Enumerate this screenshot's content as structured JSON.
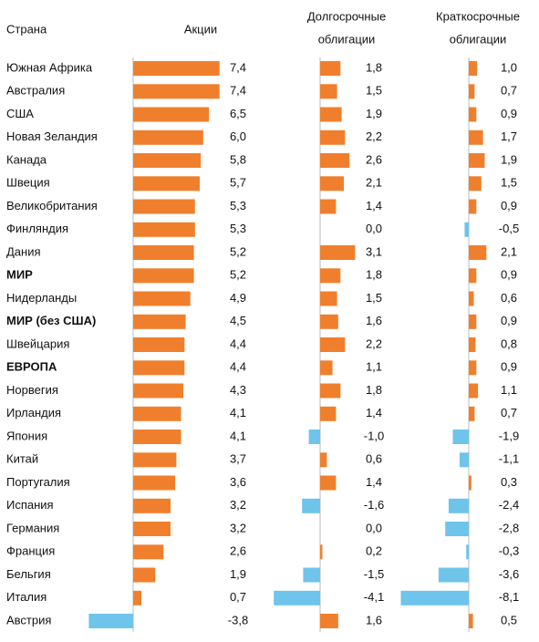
{
  "chart_data": {
    "type": "bar",
    "orientation": "horizontal",
    "header_country": "Страна",
    "columns": [
      {
        "title_lines": [
          "Акции"
        ],
        "key": "stocks"
      },
      {
        "title_lines": [
          "Долгосрочные",
          "облигации"
        ],
        "key": "long_bonds"
      },
      {
        "title_lines": [
          "Краткосрочные",
          "облигации"
        ],
        "key": "short_bonds"
      }
    ],
    "rows": [
      {
        "country": "Южная Африка",
        "bold": false,
        "stocks": 7.4,
        "long_bonds": 1.8,
        "short_bonds": 1.0,
        "stocks_label": "7,4",
        "long_bonds_label": "1,8",
        "short_bonds_label": "1,0"
      },
      {
        "country": "Австралия",
        "bold": false,
        "stocks": 7.4,
        "long_bonds": 1.5,
        "short_bonds": 0.7,
        "stocks_label": "7,4",
        "long_bonds_label": "1,5",
        "short_bonds_label": "0,7"
      },
      {
        "country": "США",
        "bold": false,
        "stocks": 6.5,
        "long_bonds": 1.9,
        "short_bonds": 0.9,
        "stocks_label": "6,5",
        "long_bonds_label": "1,9",
        "short_bonds_label": "0,9"
      },
      {
        "country": "Новая Зеландия",
        "bold": false,
        "stocks": 6.0,
        "long_bonds": 2.2,
        "short_bonds": 1.7,
        "stocks_label": "6,0",
        "long_bonds_label": "2,2",
        "short_bonds_label": "1,7"
      },
      {
        "country": "Канада",
        "bold": false,
        "stocks": 5.8,
        "long_bonds": 2.6,
        "short_bonds": 1.9,
        "stocks_label": "5,8",
        "long_bonds_label": "2,6",
        "short_bonds_label": "1,9"
      },
      {
        "country": "Швеция",
        "bold": false,
        "stocks": 5.7,
        "long_bonds": 2.1,
        "short_bonds": 1.5,
        "stocks_label": "5,7",
        "long_bonds_label": "2,1",
        "short_bonds_label": "1,5"
      },
      {
        "country": "Великобритания",
        "bold": false,
        "stocks": 5.3,
        "long_bonds": 1.4,
        "short_bonds": 0.9,
        "stocks_label": "5,3",
        "long_bonds_label": "1,4",
        "short_bonds_label": "0,9"
      },
      {
        "country": "Финляндия",
        "bold": false,
        "stocks": 5.3,
        "long_bonds": 0.0,
        "short_bonds": -0.5,
        "stocks_label": "5,3",
        "long_bonds_label": "0,0",
        "short_bonds_label": "-0,5"
      },
      {
        "country": "Дания",
        "bold": false,
        "stocks": 5.2,
        "long_bonds": 3.1,
        "short_bonds": 2.1,
        "stocks_label": "5,2",
        "long_bonds_label": "3,1",
        "short_bonds_label": "2,1"
      },
      {
        "country": "МИР",
        "bold": true,
        "stocks": 5.2,
        "long_bonds": 1.8,
        "short_bonds": 0.9,
        "stocks_label": "5,2",
        "long_bonds_label": "1,8",
        "short_bonds_label": "0,9"
      },
      {
        "country": "Нидерланды",
        "bold": false,
        "stocks": 4.9,
        "long_bonds": 1.5,
        "short_bonds": 0.6,
        "stocks_label": "4,9",
        "long_bonds_label": "1,5",
        "short_bonds_label": "0,6"
      },
      {
        "country": "МИР (без США)",
        "bold": true,
        "stocks": 4.5,
        "long_bonds": 1.6,
        "short_bonds": 0.9,
        "stocks_label": "4,5",
        "long_bonds_label": "1,6",
        "short_bonds_label": "0,9"
      },
      {
        "country": "Швейцария",
        "bold": false,
        "stocks": 4.4,
        "long_bonds": 2.2,
        "short_bonds": 0.8,
        "stocks_label": "4,4",
        "long_bonds_label": "2,2",
        "short_bonds_label": "0,8"
      },
      {
        "country": "ЕВРОПА",
        "bold": true,
        "stocks": 4.4,
        "long_bonds": 1.1,
        "short_bonds": 0.9,
        "stocks_label": "4,4",
        "long_bonds_label": "1,1",
        "short_bonds_label": "0,9"
      },
      {
        "country": "Норвегия",
        "bold": false,
        "stocks": 4.3,
        "long_bonds": 1.8,
        "short_bonds": 1.1,
        "stocks_label": "4,3",
        "long_bonds_label": "1,8",
        "short_bonds_label": "1,1"
      },
      {
        "country": "Ирландия",
        "bold": false,
        "stocks": 4.1,
        "long_bonds": 1.4,
        "short_bonds": 0.7,
        "stocks_label": "4,1",
        "long_bonds_label": "1,4",
        "short_bonds_label": "0,7"
      },
      {
        "country": "Япония",
        "bold": false,
        "stocks": 4.1,
        "long_bonds": -1.0,
        "short_bonds": -1.9,
        "stocks_label": "4,1",
        "long_bonds_label": "-1,0",
        "short_bonds_label": "-1,9"
      },
      {
        "country": "Китай",
        "bold": false,
        "stocks": 3.7,
        "long_bonds": 0.6,
        "short_bonds": -1.1,
        "stocks_label": "3,7",
        "long_bonds_label": "0,6",
        "short_bonds_label": "-1,1"
      },
      {
        "country": "Португалия",
        "bold": false,
        "stocks": 3.6,
        "long_bonds": 1.4,
        "short_bonds": 0.3,
        "stocks_label": "3,6",
        "long_bonds_label": "1,4",
        "short_bonds_label": "0,3"
      },
      {
        "country": "Испания",
        "bold": false,
        "stocks": 3.2,
        "long_bonds": -1.6,
        "short_bonds": -2.4,
        "stocks_label": "3,2",
        "long_bonds_label": "-1,6",
        "short_bonds_label": "-2,4"
      },
      {
        "country": "Германия",
        "bold": false,
        "stocks": 3.2,
        "long_bonds": 0.0,
        "short_bonds": -2.8,
        "stocks_label": "3,2",
        "long_bonds_label": "0,0",
        "short_bonds_label": "-2,8"
      },
      {
        "country": "Франция",
        "bold": false,
        "stocks": 2.6,
        "long_bonds": 0.2,
        "short_bonds": -0.3,
        "stocks_label": "2,6",
        "long_bonds_label": "0,2",
        "short_bonds_label": "-0,3"
      },
      {
        "country": "Бельгия",
        "bold": false,
        "stocks": 1.9,
        "long_bonds": -1.5,
        "short_bonds": -3.6,
        "stocks_label": "1,9",
        "long_bonds_label": "-1,5",
        "short_bonds_label": "-3,6"
      },
      {
        "country": "Италия",
        "bold": false,
        "stocks": 0.7,
        "long_bonds": -4.1,
        "short_bonds": -8.1,
        "stocks_label": "0,7",
        "long_bonds_label": "-4,1",
        "short_bonds_label": "-8,1"
      },
      {
        "country": "Австрия",
        "bold": false,
        "stocks": -3.8,
        "long_bonds": 1.6,
        "short_bonds": 0.5,
        "stocks_label": "-3,8",
        "long_bonds_label": "1,6",
        "short_bonds_label": "0,5"
      }
    ],
    "colors": {
      "positive": "#f07f2d",
      "negative": "#6ec4ea",
      "axis": "#bbbbbb"
    },
    "grid": false,
    "legend": "none"
  }
}
